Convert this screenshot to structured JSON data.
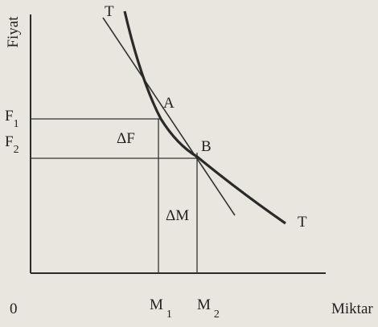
{
  "axes": {
    "y_label": "Fiyat",
    "x_label": "Miktar",
    "origin": "0"
  },
  "curves": {
    "demand_label": "T",
    "tangent_label": "T"
  },
  "points": {
    "a": "A",
    "b": "B"
  },
  "prices": [
    {
      "letter": "F",
      "sub": "1"
    },
    {
      "letter": "F",
      "sub": "2"
    }
  ],
  "quantities": [
    {
      "letter": "M",
      "sub": "1"
    },
    {
      "letter": "M",
      "sub": "2"
    }
  ],
  "deltas": {
    "price": "ΔF",
    "quantity": "ΔM"
  }
}
